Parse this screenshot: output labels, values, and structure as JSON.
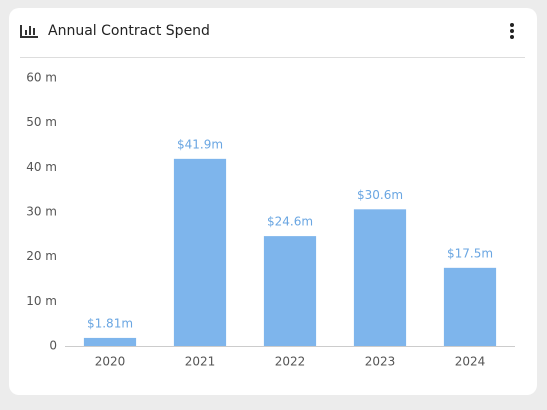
{
  "chart_data": {
    "type": "bar",
    "title": "Annual Contract Spend",
    "categories": [
      "2020",
      "2021",
      "2022",
      "2023",
      "2024"
    ],
    "values": [
      1.81,
      41.9,
      24.6,
      30.6,
      17.5
    ],
    "value_labels": [
      "$1.81m",
      "$41.9m",
      "$24.6m",
      "$30.6m",
      "$17.5m"
    ],
    "color": "#7eb5ec",
    "ylim": [
      0,
      60
    ],
    "yticks": [
      0,
      {
        "value": 10,
        "label": "10 m"
      },
      {
        "value": 20,
        "label": "20 m"
      },
      {
        "value": 30,
        "label": "30 m"
      },
      {
        "value": 40,
        "label": "40 m"
      },
      {
        "value": 50,
        "label": "50 m"
      },
      {
        "value": 60,
        "label": "60 m"
      }
    ],
    "grid": false
  }
}
